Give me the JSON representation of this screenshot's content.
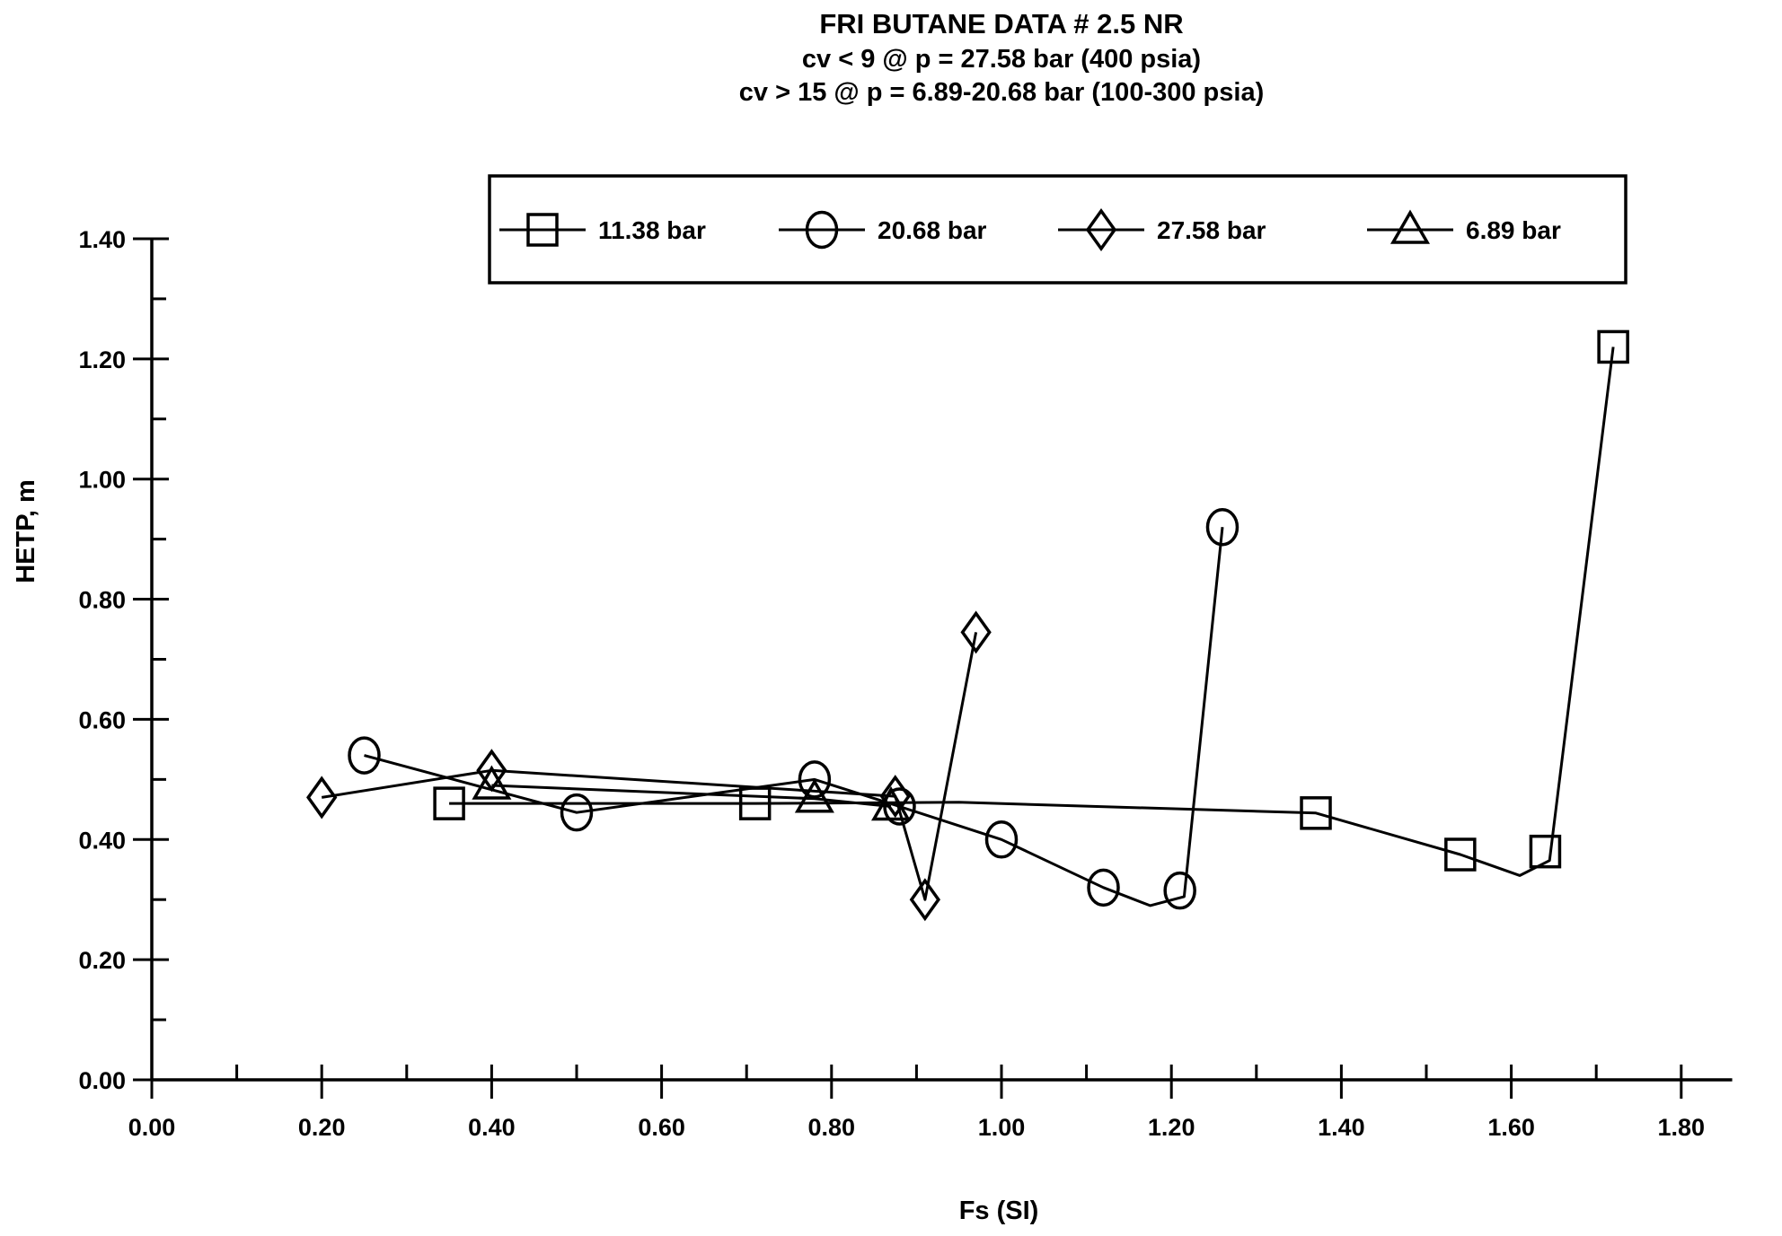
{
  "page": {
    "background": "#ffffff",
    "ink": "#000000"
  },
  "header": {
    "title": "FRI BUTANE DATA # 2.5 NR",
    "subtitle1": "cv < 9 @ p = 27.58 bar (400 psia)",
    "subtitle2": "cv > 15 @ p = 6.89-20.68 bar (100-300 psia)"
  },
  "chart_data": {
    "type": "line",
    "title": "FRI BUTANE DATA # 2.5 NR",
    "xlabel": "Fs (SI)",
    "ylabel": "HETP, m",
    "xlim": [
      0.0,
      1.86
    ],
    "ylim": [
      0.0,
      1.4
    ],
    "grid": false,
    "legend_position": "top-center-boxed",
    "x_tick_values": [
      0.0,
      0.2,
      0.4,
      0.6,
      0.8,
      1.0,
      1.2,
      1.4,
      1.6,
      1.8
    ],
    "x_tick_labels": [
      "0.00",
      "0.20",
      "0.40",
      "0.60",
      "0.80",
      "1.00",
      "1.20",
      "1.40",
      "1.60",
      "1.80"
    ],
    "x_minor_tick_values": [
      0.1,
      0.3,
      0.5,
      0.7,
      0.9,
      1.1,
      1.3,
      1.5,
      1.7
    ],
    "y_tick_values": [
      0.0,
      0.2,
      0.4,
      0.6,
      0.8,
      1.0,
      1.2,
      1.4
    ],
    "y_tick_labels": [
      "0.00",
      "0.20",
      "0.40",
      "0.60",
      "0.80",
      "1.00",
      "1.20",
      "1.40"
    ],
    "y_minor_tick_values": [
      0.1,
      0.3,
      0.5,
      0.7,
      0.9,
      1.1,
      1.3
    ],
    "series": [
      {
        "name": "11.38 bar",
        "marker": "square",
        "points": [
          [
            0.35,
            0.46
          ],
          [
            0.71,
            0.46
          ],
          [
            1.37,
            0.444
          ],
          [
            1.54,
            0.375
          ],
          [
            1.64,
            0.38
          ],
          [
            1.72,
            1.22
          ]
        ],
        "curve": [
          [
            0.35,
            0.46
          ],
          [
            0.71,
            0.46
          ],
          [
            0.95,
            0.462
          ],
          [
            1.37,
            0.444
          ],
          [
            1.54,
            0.375
          ],
          [
            1.61,
            0.34
          ],
          [
            1.645,
            0.365
          ],
          [
            1.72,
            1.22
          ]
        ]
      },
      {
        "name": "20.68 bar",
        "marker": "circle",
        "points": [
          [
            0.25,
            0.54
          ],
          [
            0.5,
            0.445
          ],
          [
            0.78,
            0.5
          ],
          [
            0.88,
            0.455
          ],
          [
            1.0,
            0.4
          ],
          [
            1.12,
            0.32
          ],
          [
            1.21,
            0.315
          ],
          [
            1.26,
            0.92
          ]
        ],
        "curve": [
          [
            0.25,
            0.54
          ],
          [
            0.5,
            0.445
          ],
          [
            0.78,
            0.5
          ],
          [
            0.88,
            0.455
          ],
          [
            1.0,
            0.4
          ],
          [
            1.12,
            0.32
          ],
          [
            1.175,
            0.29
          ],
          [
            1.215,
            0.305
          ],
          [
            1.26,
            0.92
          ]
        ]
      },
      {
        "name": "27.58 bar",
        "marker": "diamond",
        "points": [
          [
            0.2,
            0.47
          ],
          [
            0.4,
            0.515
          ],
          [
            0.875,
            0.472
          ],
          [
            0.91,
            0.3
          ],
          [
            0.97,
            0.745
          ]
        ],
        "curve": [
          [
            0.2,
            0.47
          ],
          [
            0.4,
            0.515
          ],
          [
            0.875,
            0.472
          ],
          [
            0.91,
            0.3
          ],
          [
            0.97,
            0.745
          ]
        ]
      },
      {
        "name": "6.89 bar",
        "marker": "triangle",
        "points": [
          [
            0.4,
            0.49
          ],
          [
            0.78,
            0.468
          ],
          [
            0.87,
            0.455
          ]
        ],
        "curve": [
          [
            0.4,
            0.49
          ],
          [
            0.78,
            0.468
          ],
          [
            0.87,
            0.455
          ]
        ]
      }
    ]
  }
}
